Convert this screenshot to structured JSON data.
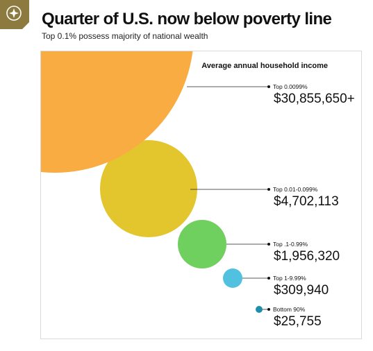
{
  "header": {
    "title": "Quarter of U.S. now below poverty line",
    "subtitle": "Top 0.1% possess majority of national wealth",
    "badge_icon": "compass-star-icon",
    "badge_color": "#8c7a3f"
  },
  "chart_data": {
    "type": "bubble",
    "title": "Average annual household income",
    "series": [
      {
        "name": "Top 0.0099%",
        "value": 30855650,
        "display": "$30,855,650+",
        "color": "#f8ac42"
      },
      {
        "name": "Top 0.01-0.099%",
        "value": 4702113,
        "display": "$4,702,113",
        "color": "#e3c52e"
      },
      {
        "name": "Top .1-0.99%",
        "value": 1956320,
        "display": "$1,956,320",
        "color": "#6fcf5f"
      },
      {
        "name": "Top 1-9.99%",
        "value": 309940,
        "display": "$309,940",
        "color": "#52c1e0"
      },
      {
        "name": "Bottom 90%",
        "value": 25755,
        "display": "$25,755",
        "color": "#1c8faa"
      }
    ]
  }
}
